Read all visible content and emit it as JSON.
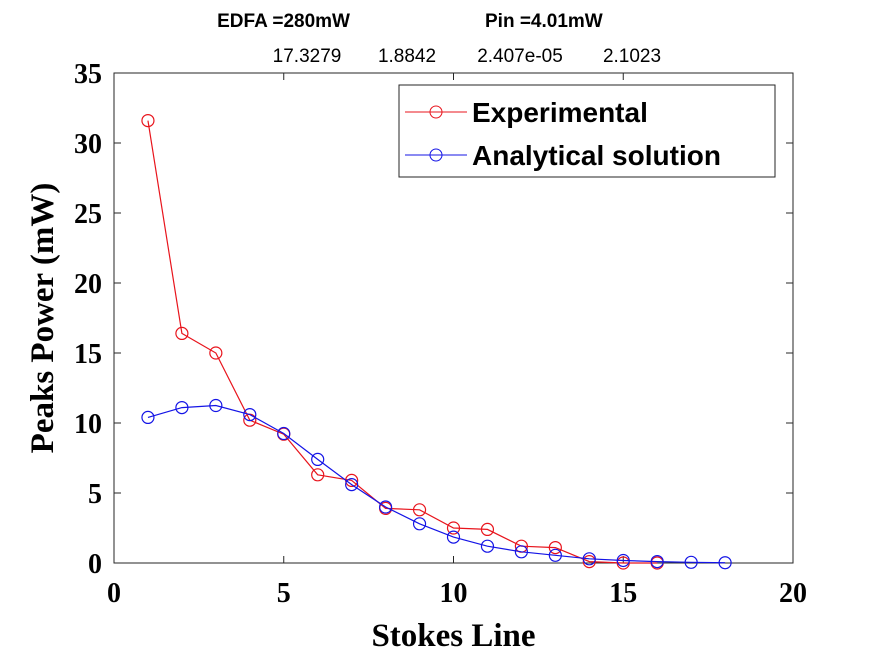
{
  "chart_data": {
    "type": "line",
    "title": "EDFA =280mW        Pin =4.01mW",
    "title_parts": [
      "EDFA =280mW",
      "Pin =4.01mW"
    ],
    "subtitle_values": [
      "17.3279",
      "1.8842",
      "2.407e-05",
      "2.1023"
    ],
    "xlabel": "Stokes Line",
    "ylabel": "Peaks Power (mW)",
    "xlim": [
      0,
      20
    ],
    "ylim": [
      0,
      35
    ],
    "xticks": [
      0,
      5,
      10,
      15,
      20
    ],
    "yticks": [
      0,
      5,
      10,
      15,
      20,
      25,
      30,
      35
    ],
    "grid": false,
    "legend_position": "top-right",
    "series": [
      {
        "name": "Experimental",
        "color": "#e8141c",
        "marker": "circle-open",
        "x": [
          1,
          2,
          3,
          4,
          5,
          6,
          7,
          8,
          9,
          10,
          11,
          12,
          13,
          14,
          15,
          16
        ],
        "y": [
          31.6,
          16.4,
          15.0,
          10.2,
          9.2,
          6.3,
          5.9,
          3.9,
          3.8,
          2.5,
          2.4,
          1.2,
          1.1,
          0.1,
          0.0,
          0.0
        ]
      },
      {
        "name": "Analytical solution",
        "color": "#1414e6",
        "marker": "circle-open",
        "x": [
          1,
          2,
          3,
          4,
          5,
          6,
          7,
          8,
          9,
          10,
          11,
          12,
          13,
          14,
          15,
          16,
          17,
          18
        ],
        "y": [
          10.4,
          11.1,
          11.25,
          10.6,
          9.25,
          7.4,
          5.6,
          4.0,
          2.8,
          1.85,
          1.2,
          0.8,
          0.55,
          0.3,
          0.18,
          0.1,
          0.05,
          0.02
        ]
      }
    ]
  }
}
